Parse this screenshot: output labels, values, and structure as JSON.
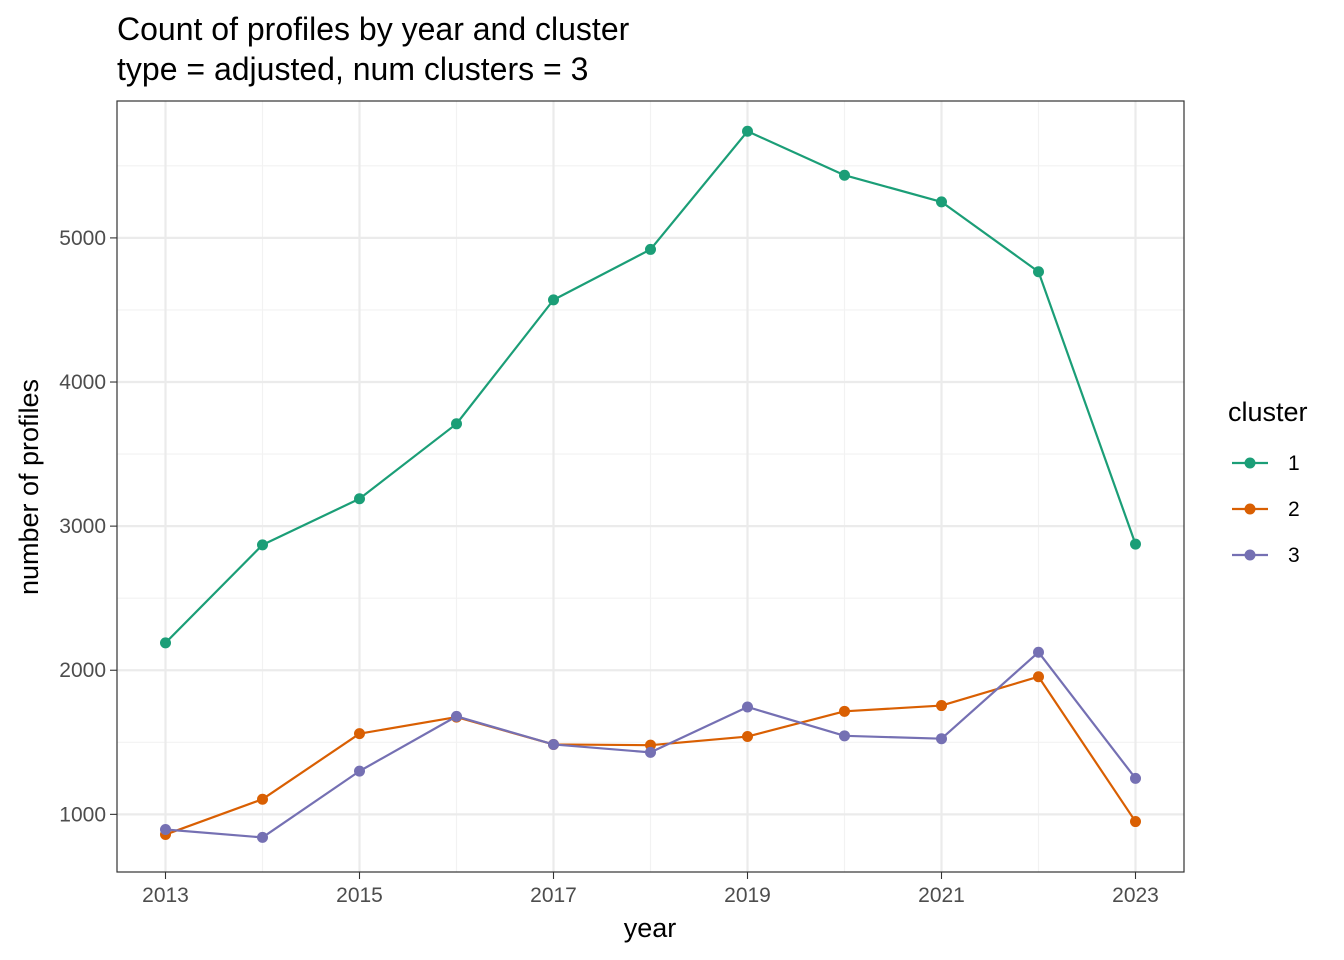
{
  "chart_data": {
    "type": "line",
    "title": "Count of profiles by year and cluster",
    "subtitle": "type = adjusted, num clusters = 3",
    "xlabel": "year",
    "ylabel": "number of profiles",
    "x": [
      2013,
      2014,
      2015,
      2016,
      2017,
      2018,
      2019,
      2020,
      2021,
      2022,
      2023
    ],
    "xlim": [
      2012.5,
      2023.5
    ],
    "ylim": [
      600,
      5950
    ],
    "x_ticks": [
      2013,
      2015,
      2017,
      2019,
      2021,
      2023
    ],
    "x_tick_labels": [
      "2013",
      "2015",
      "2017",
      "2019",
      "2021",
      "2023"
    ],
    "y_ticks": [
      1000,
      2000,
      3000,
      4000,
      5000
    ],
    "y_tick_labels": [
      "1000",
      "2000",
      "3000",
      "4000",
      "5000"
    ],
    "grid": true,
    "legend": {
      "title": "cluster",
      "position": "right",
      "entries": [
        "1",
        "2",
        "3"
      ]
    },
    "series": [
      {
        "name": "1",
        "color": "#1b9e77",
        "values": [
          2190,
          2870,
          3190,
          3710,
          4570,
          4920,
          5740,
          5435,
          5250,
          4765,
          2875
        ]
      },
      {
        "name": "2",
        "color": "#d95f02",
        "values": [
          860,
          1105,
          1560,
          1675,
          1485,
          1480,
          1540,
          1715,
          1755,
          1955,
          950
        ]
      },
      {
        "name": "3",
        "color": "#7570b3",
        "values": [
          895,
          840,
          1300,
          1680,
          1485,
          1430,
          1745,
          1545,
          1525,
          2125,
          1250
        ]
      }
    ]
  }
}
